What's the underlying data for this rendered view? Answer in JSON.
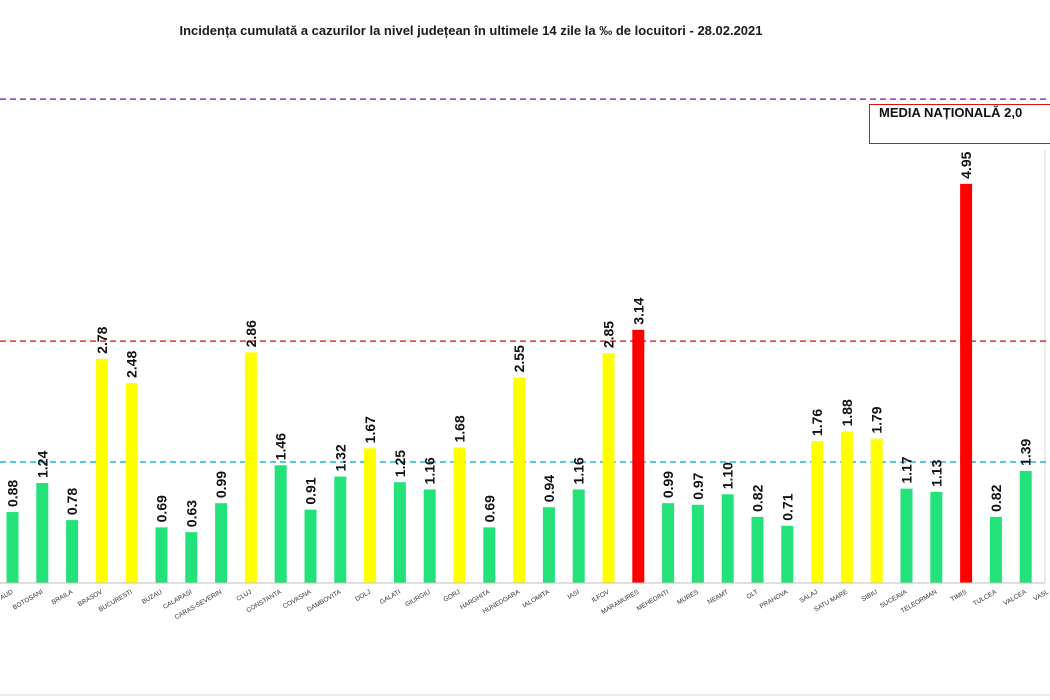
{
  "chart_data": {
    "type": "bar",
    "title": "Incidența cumulată a cazurilor la nivel județean în ultimele 14 zile la ‰ de locuitori - 28.02.2021",
    "xlabel": "",
    "ylabel": "",
    "categories": [
      "AUD",
      "BOTOSANI",
      "BRAILA",
      "BRASOV",
      "BUCURESTI",
      "BUZAU",
      "CALARASI",
      "CARAS-SEVERIN",
      "CLUJ",
      "CONSTANTA",
      "COVASNA",
      "DAMBOVITA",
      "DOLJ",
      "GALATI",
      "GIURGIU",
      "GORJ",
      "HARGHITA",
      "HUNEDOARA",
      "IALOMITA",
      "IASI",
      "ILFOV",
      "MARAMURES",
      "MEHEDINTI",
      "MURES",
      "NEAMT",
      "OLT",
      "PRAHOVA",
      "SALAJ",
      "SATU MARE",
      "SIBIU",
      "SUCEAVA",
      "TELEORMAN",
      "TIMIS",
      "TULCEA",
      "VALCEA",
      "VASL"
    ],
    "values": [
      0.88,
      1.24,
      0.78,
      2.78,
      2.48,
      0.69,
      0.63,
      0.99,
      2.86,
      1.46,
      0.91,
      1.32,
      1.67,
      1.25,
      1.16,
      1.68,
      0.69,
      2.55,
      0.94,
      1.16,
      2.85,
      3.14,
      0.99,
      0.97,
      1.1,
      0.82,
      0.71,
      1.76,
      1.88,
      1.79,
      1.17,
      1.13,
      4.95,
      0.82,
      1.39,
      null
    ],
    "bar_colors": [
      "#24E27A",
      "#24E27A",
      "#24E27A",
      "#FFFF00",
      "#FFFF00",
      "#24E27A",
      "#24E27A",
      "#24E27A",
      "#FFFF00",
      "#24E27A",
      "#24E27A",
      "#24E27A",
      "#FFFF00",
      "#24E27A",
      "#24E27A",
      "#FFFF00",
      "#24E27A",
      "#FFFF00",
      "#24E27A",
      "#24E27A",
      "#FFFF00",
      "#FF0000",
      "#24E27A",
      "#24E27A",
      "#24E27A",
      "#24E27A",
      "#24E27A",
      "#FFFF00",
      "#FFFF00",
      "#FFFF00",
      "#24E27A",
      "#24E27A",
      "#FF0000",
      "#24E27A",
      "#24E27A",
      null
    ],
    "ylim": [
      0,
      7.23
    ],
    "reference_lines": [
      {
        "value": 6,
        "color": "#7B3FB5",
        "style": "dashed"
      },
      {
        "value": 3,
        "color": "#E0302E",
        "style": "dashed"
      },
      {
        "value": 1.5,
        "color": "#22B5CF",
        "style": "dashed"
      }
    ],
    "annotation": {
      "text": "MEDIA NAȚIONALĂ 2,0",
      "border_color": "#E01010"
    },
    "grid": false,
    "legend": "none"
  },
  "colors": {
    "green": "#24E27A",
    "yellow": "#FFFF00",
    "red": "#FF0000",
    "axis": "#BFBFBF"
  }
}
